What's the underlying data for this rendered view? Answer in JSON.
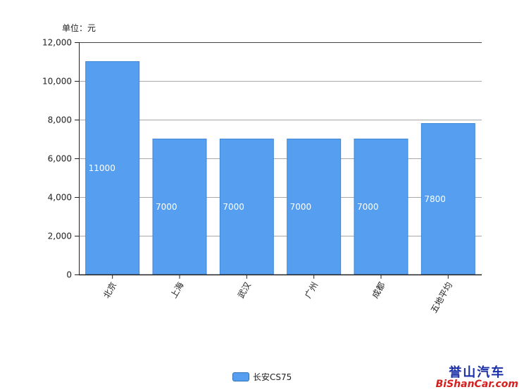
{
  "unit_label": "单位：元",
  "watermark": {
    "top": "誉山汽车",
    "bottom": "BiShanCar.com"
  },
  "chart_data": {
    "type": "bar",
    "categories": [
      "北京",
      "上海",
      "武汉",
      "广州",
      "成都",
      "五地平均"
    ],
    "series": [
      {
        "name": "长安CS75",
        "values": [
          11000,
          7000,
          7000,
          7000,
          7000,
          7800
        ],
        "color": "#569ff0"
      }
    ],
    "data_labels": [
      "11000",
      "7000",
      "7000",
      "7000",
      "7000",
      "7800"
    ],
    "ylim": [
      0,
      12000
    ],
    "yticks": [
      0,
      2000,
      4000,
      6000,
      8000,
      10000,
      12000
    ],
    "ytick_labels": [
      "0",
      "2,000",
      "4,000",
      "6,000",
      "8,000",
      "10,000",
      "12,000"
    ],
    "grid": true,
    "legend": "bottom-center"
  }
}
